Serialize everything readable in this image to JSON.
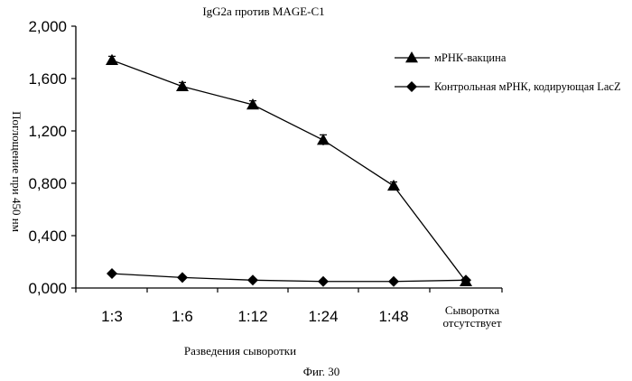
{
  "chart_data": {
    "type": "line",
    "title": "IgG2a против MAGE-C1",
    "xlabel": "Разведения сыворотки",
    "ylabel": "Поглощение при 450 нм",
    "caption": "Фиг. 30",
    "categories": [
      "1:3",
      "1:6",
      "1:12",
      "1:24",
      "1:48",
      "Сыворотка отсутствует"
    ],
    "category_lines": [
      [
        "1:3"
      ],
      [
        "1:6"
      ],
      [
        "1:12"
      ],
      [
        "1:24"
      ],
      [
        "1:48"
      ],
      [
        "Сыворотка",
        "отсутствует"
      ]
    ],
    "ylim": [
      0,
      2.0
    ],
    "yticks": [
      0,
      0.4,
      0.8,
      1.2,
      1.6,
      2.0
    ],
    "ytick_labels": [
      "0,000",
      "0,400",
      "0,800",
      "1,200",
      "1,600",
      "2,000"
    ],
    "grid": false,
    "legend_position": "top-right",
    "series": [
      {
        "name": "мРНК-вакцина",
        "marker": "triangle",
        "values": [
          1.74,
          1.54,
          1.4,
          1.13,
          0.78,
          0.05
        ],
        "errors": [
          0.03,
          0.03,
          0.03,
          0.04,
          0.03,
          0.0
        ]
      },
      {
        "name": "Контрольная мРНК, кодирующая LacZ",
        "marker": "diamond",
        "values": [
          0.11,
          0.08,
          0.06,
          0.05,
          0.05,
          0.06
        ],
        "errors": [
          0,
          0,
          0,
          0,
          0,
          0
        ]
      }
    ],
    "colors": {
      "ink": "#000000",
      "background": "#ffffff"
    }
  }
}
